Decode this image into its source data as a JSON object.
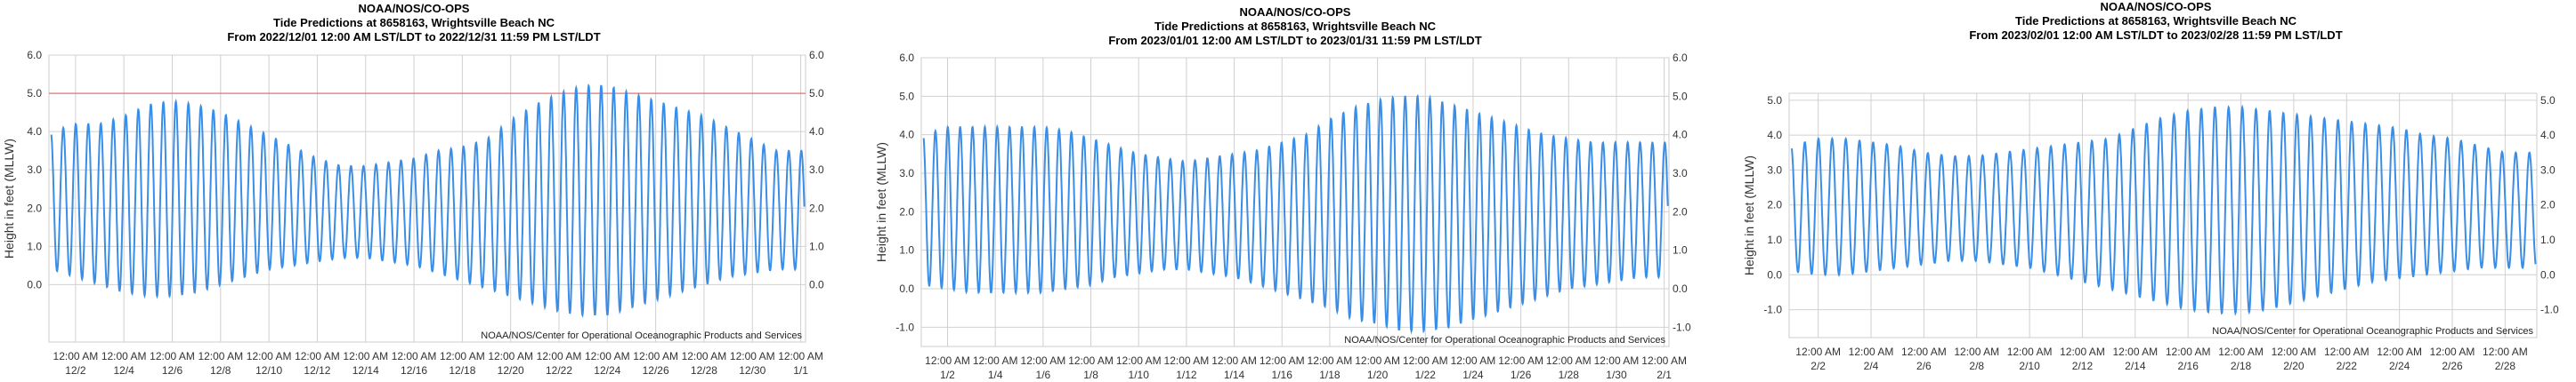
{
  "chart_data": [
    {
      "type": "line",
      "title": [
        "NOAA/NOS/CO-OPS",
        "Tide Predictions at 8658163, Wrightsville Beach NC",
        "From 2022/12/01 12:00 AM LST/LDT to 2022/12/31 11:59 PM LST/LDT"
      ],
      "ylabel": "Height in feet (MLLW)",
      "ylim": [
        -1.5,
        6.0
      ],
      "yticks": [
        "6.0",
        "5.0",
        "4.0",
        "3.0",
        "2.0",
        "1.0",
        "0.0"
      ],
      "ytick_values": [
        6,
        5,
        4,
        3,
        2,
        1,
        0
      ],
      "xticks": [
        [
          "12:00 AM",
          "12/2"
        ],
        [
          "12:00 AM",
          "12/4"
        ],
        [
          "12:00 AM",
          "12/6"
        ],
        [
          "12:00 AM",
          "12/8"
        ],
        [
          "12:00 AM",
          "12/10"
        ],
        [
          "12:00 AM",
          "12/12"
        ],
        [
          "12:00 AM",
          "12/14"
        ],
        [
          "12:00 AM",
          "12/16"
        ],
        [
          "12:00 AM",
          "12/18"
        ],
        [
          "12:00 AM",
          "12/20"
        ],
        [
          "12:00 AM",
          "12/22"
        ],
        [
          "12:00 AM",
          "12/24"
        ],
        [
          "12:00 AM",
          "12/26"
        ],
        [
          "12:00 AM",
          "12/28"
        ],
        [
          "12:00 AM",
          "12/30"
        ],
        [
          "12:00 AM",
          "1/1"
        ]
      ],
      "x_days": [
        1,
        3,
        5,
        7,
        9,
        11,
        13,
        15,
        17,
        19,
        21,
        23,
        25,
        27,
        29,
        31
      ],
      "x_range_days": [
        -0.1,
        31.2
      ],
      "daily_high_ft": [
        4.0,
        4.2,
        4.2,
        4.4,
        4.7,
        4.8,
        4.7,
        4.5,
        4.2,
        3.9,
        3.6,
        3.3,
        3.1,
        3.1,
        3.2,
        3.3,
        3.5,
        3.6,
        3.8,
        4.3,
        4.7,
        5.0,
        5.2,
        5.2,
        5.0,
        4.8,
        4.6,
        4.4,
        4.1,
        3.8,
        3.5
      ],
      "daily_low_ft": [
        0.4,
        0.2,
        0.0,
        -0.2,
        -0.3,
        -0.3,
        -0.2,
        0.0,
        0.2,
        0.4,
        0.5,
        0.6,
        0.7,
        0.7,
        0.6,
        0.5,
        0.3,
        0.1,
        -0.1,
        -0.3,
        -0.5,
        -0.7,
        -0.8,
        -0.8,
        -0.6,
        -0.4,
        -0.2,
        0.0,
        0.2,
        0.3,
        0.4
      ],
      "red_reference_line_ft": 5.0,
      "footer": "NOAA/NOS/Center for Operational Oceanographic Products and Services",
      "series_color": "#3a8ee6",
      "grid": true
    },
    {
      "type": "line",
      "title": [
        "NOAA/NOS/CO-OPS",
        "Tide Predictions at 8658163, Wrightsville Beach NC",
        "From 2023/01/01 12:00 AM LST/LDT to 2023/01/31 11:59 PM LST/LDT"
      ],
      "ylabel": "Height in feet (MLLW)",
      "ylim": [
        -1.5,
        6.0
      ],
      "yticks": [
        "6.0",
        "5.0",
        "4.0",
        "3.0",
        "2.0",
        "1.0",
        "0.0",
        "-1.0"
      ],
      "ytick_values": [
        6,
        5,
        4,
        3,
        2,
        1,
        0,
        -1
      ],
      "xticks": [
        [
          "12:00 AM",
          "1/2"
        ],
        [
          "12:00 AM",
          "1/4"
        ],
        [
          "12:00 AM",
          "1/6"
        ],
        [
          "12:00 AM",
          "1/8"
        ],
        [
          "12:00 AM",
          "1/10"
        ],
        [
          "12:00 AM",
          "1/12"
        ],
        [
          "12:00 AM",
          "1/14"
        ],
        [
          "12:00 AM",
          "1/16"
        ],
        [
          "12:00 AM",
          "1/18"
        ],
        [
          "12:00 AM",
          "1/20"
        ],
        [
          "12:00 AM",
          "1/22"
        ],
        [
          "12:00 AM",
          "1/24"
        ],
        [
          "12:00 AM",
          "1/26"
        ],
        [
          "12:00 AM",
          "1/28"
        ],
        [
          "12:00 AM",
          "1/30"
        ],
        [
          "12:00 AM",
          "2/1"
        ]
      ],
      "x_days": [
        1,
        3,
        5,
        7,
        9,
        11,
        13,
        15,
        17,
        19,
        21,
        23,
        25,
        27,
        29,
        31
      ],
      "x_range_days": [
        -0.1,
        31.2
      ],
      "daily_high_ft": [
        4.0,
        4.2,
        4.2,
        4.2,
        4.2,
        4.2,
        4.1,
        3.9,
        3.7,
        3.5,
        3.4,
        3.3,
        3.4,
        3.5,
        3.6,
        3.8,
        4.0,
        4.4,
        4.7,
        4.9,
        5.0,
        5.0,
        4.8,
        4.6,
        4.4,
        4.2,
        4.0,
        3.9,
        3.8,
        3.8,
        3.8
      ],
      "daily_low_ft": [
        0.1,
        0.0,
        -0.1,
        -0.1,
        -0.1,
        -0.1,
        0.0,
        0.1,
        0.3,
        0.4,
        0.5,
        0.5,
        0.4,
        0.3,
        0.1,
        -0.1,
        -0.3,
        -0.5,
        -0.8,
        -0.9,
        -1.1,
        -1.1,
        -1.0,
        -0.8,
        -0.6,
        -0.4,
        -0.2,
        0.0,
        0.1,
        0.2,
        0.3
      ],
      "footer": "NOAA/NOS/Center for Operational Oceanographic Products and Services",
      "series_color": "#3a8ee6",
      "grid": true
    },
    {
      "type": "line",
      "title": [
        "NOAA/NOS/CO-OPS",
        "Tide Predictions at 8658163, Wrightsville Beach NC",
        "From 2023/02/01 12:00 AM LST/LDT to 2023/02/28 11:59 PM LST/LDT"
      ],
      "ylabel": "Height in feet (MLLW)",
      "ylim": [
        -1.8,
        5.2
      ],
      "yticks": [
        "5.0",
        "4.0",
        "3.0",
        "2.0",
        "1.0",
        "0.0",
        "-1.0"
      ],
      "ytick_values": [
        5,
        4,
        3,
        2,
        1,
        0,
        -1
      ],
      "xticks": [
        [
          "12:00 AM",
          "2/2"
        ],
        [
          "12:00 AM",
          "2/4"
        ],
        [
          "12:00 AM",
          "2/6"
        ],
        [
          "12:00 AM",
          "2/8"
        ],
        [
          "12:00 AM",
          "2/10"
        ],
        [
          "12:00 AM",
          "2/12"
        ],
        [
          "12:00 AM",
          "2/14"
        ],
        [
          "12:00 AM",
          "2/16"
        ],
        [
          "12:00 AM",
          "2/18"
        ],
        [
          "12:00 AM",
          "2/20"
        ],
        [
          "12:00 AM",
          "2/22"
        ],
        [
          "12:00 AM",
          "2/24"
        ],
        [
          "12:00 AM",
          "2/26"
        ],
        [
          "12:00 AM",
          "2/28"
        ]
      ],
      "x_days": [
        1,
        3,
        5,
        7,
        9,
        11,
        13,
        15,
        17,
        19,
        21,
        23,
        25,
        27
      ],
      "x_range_days": [
        -0.1,
        28.2
      ],
      "daily_high_ft": [
        3.7,
        3.9,
        3.9,
        3.8,
        3.7,
        3.5,
        3.4,
        3.4,
        3.5,
        3.6,
        3.7,
        3.8,
        3.9,
        4.2,
        4.5,
        4.7,
        4.8,
        4.8,
        4.7,
        4.6,
        4.5,
        4.4,
        4.3,
        4.2,
        4.0,
        3.9,
        3.7,
        3.5
      ],
      "daily_low_ft": [
        0.1,
        0.0,
        0.0,
        0.1,
        0.2,
        0.3,
        0.4,
        0.4,
        0.3,
        0.2,
        0.0,
        -0.2,
        -0.4,
        -0.6,
        -0.8,
        -1.0,
        -1.1,
        -1.1,
        -1.0,
        -0.8,
        -0.6,
        -0.4,
        -0.2,
        -0.1,
        0.0,
        0.1,
        0.2,
        0.2
      ],
      "footer": "NOAA/NOS/Center for Operational Oceanographic Products and Services",
      "series_color": "#3a8ee6",
      "grid": true
    }
  ]
}
